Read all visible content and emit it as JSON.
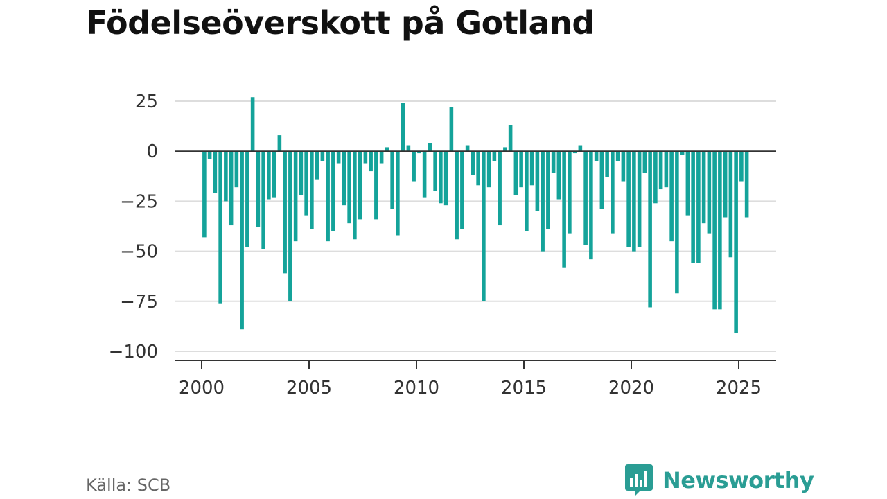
{
  "title": "Födelseöverskott på Gotland",
  "source": "Källa: SCB",
  "brand": {
    "name": "Newsworthy",
    "icon": "newsworthy-logo-icon",
    "color": "#2a9d94"
  },
  "chart_data": {
    "type": "bar",
    "title": "Födelseöverskott på Gotland",
    "xlabel": "",
    "ylabel": "",
    "bar_color": "#14a39a",
    "grid": true,
    "ylim": [
      -100,
      25
    ],
    "yticks": [
      25,
      0,
      -25,
      -50,
      -75,
      -100
    ],
    "ytick_labels": [
      "25",
      "0",
      "−25",
      "−50",
      "−75",
      "−100"
    ],
    "xlim": [
      2000,
      2025.5
    ],
    "xticks": [
      2000,
      2005,
      2010,
      2015,
      2020,
      2025
    ],
    "xtick_labels": [
      "2000",
      "2005",
      "2010",
      "2015",
      "2020",
      "2025"
    ],
    "x_unit": "month (plotted at fractional year)",
    "x": [
      2000.125,
      2000.375,
      2000.625,
      2000.875,
      2001.125,
      2001.375,
      2001.625,
      2001.875,
      2002.125,
      2002.375,
      2002.625,
      2002.875,
      2003.125,
      2003.375,
      2003.625,
      2003.875,
      2004.125,
      2004.375,
      2004.625,
      2004.875,
      2005.125,
      2005.375,
      2005.625,
      2005.875,
      2006.125,
      2006.375,
      2006.625,
      2006.875,
      2007.125,
      2007.375,
      2007.625,
      2007.875,
      2008.125,
      2008.375,
      2008.625,
      2008.875,
      2009.125,
      2009.375,
      2009.625,
      2009.875,
      2010.125,
      2010.375,
      2010.625,
      2010.875,
      2011.125,
      2011.375,
      2011.625,
      2011.875,
      2012.125,
      2012.375,
      2012.625,
      2012.875,
      2013.125,
      2013.375,
      2013.625,
      2013.875,
      2014.125,
      2014.375,
      2014.625,
      2014.875,
      2015.125,
      2015.375,
      2015.625,
      2015.875,
      2016.125,
      2016.375,
      2016.625,
      2016.875,
      2017.125,
      2017.375,
      2017.625,
      2017.875,
      2018.125,
      2018.375,
      2018.625,
      2018.875,
      2019.125,
      2019.375,
      2019.625,
      2019.875,
      2020.125,
      2020.375,
      2020.625,
      2020.875,
      2021.125,
      2021.375,
      2021.625,
      2021.875,
      2022.125,
      2022.375,
      2022.625,
      2022.875,
      2023.125,
      2023.375,
      2023.625,
      2023.875,
      2024.125,
      2024.375,
      2024.625,
      2024.875,
      2025.125,
      2025.375
    ],
    "values": [
      -43,
      -4,
      -21,
      -76,
      -25,
      -37,
      -18,
      -89,
      -48,
      27,
      -38,
      -49,
      -24,
      -23,
      8,
      -61,
      -75,
      -45,
      -22,
      -32,
      -39,
      -14,
      -5,
      -45,
      -40,
      -6,
      -27,
      -36,
      -44,
      -34,
      -6,
      -10,
      -34,
      -6,
      2,
      -29,
      -42,
      24,
      3,
      -15,
      -1,
      -23,
      4,
      -20,
      -26,
      -27,
      22,
      -44,
      -39,
      3,
      -12,
      -17,
      -75,
      -18,
      -5,
      -37,
      2,
      13,
      -22,
      -18,
      -40,
      -17,
      -30,
      -50,
      -39,
      -11,
      -24,
      -58,
      -41,
      -1,
      3,
      -47,
      -54,
      -5,
      -29,
      -13,
      -41,
      -5,
      -15,
      -48,
      -50,
      -48,
      -11,
      -78,
      -26,
      -19,
      -18,
      -45,
      -71,
      -2,
      -32,
      -56,
      -56,
      -36,
      -41,
      -79,
      -79,
      -33,
      -53,
      -91,
      -15,
      -33
    ]
  }
}
